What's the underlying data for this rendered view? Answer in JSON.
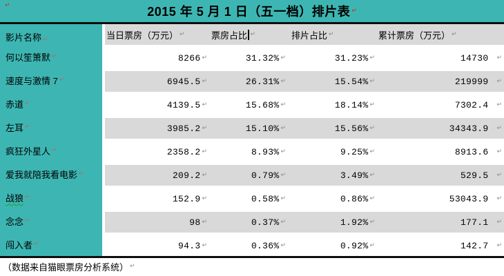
{
  "title": "2015 年 5 月 1 日（五一档）排片表",
  "marks": {
    "cell_end": "↵"
  },
  "table": {
    "name_header": "影片名称",
    "value_headers": [
      "当日票房（万元）",
      "票房占比",
      "排片占比",
      "累计票房（万元）"
    ],
    "rows": [
      {
        "name": "何以笙箫默",
        "daily": "8266",
        "share": "31.32%",
        "screening": "31.23%",
        "total": "14730"
      },
      {
        "name": "速度与激情 7",
        "daily": "6945.5",
        "share": "26.31%",
        "screening": "15.54%",
        "total": "219999"
      },
      {
        "name": "赤道",
        "daily": "4139.5",
        "share": "15.68%",
        "screening": "18.14%",
        "total": "7302.4"
      },
      {
        "name": "左耳",
        "daily": "3985.2",
        "share": "15.10%",
        "screening": "15.56%",
        "total": "34343.9"
      },
      {
        "name": "疯狂外星人",
        "daily": "2358.2",
        "share": "8.93%",
        "screening": "9.25%",
        "total": "8913.6"
      },
      {
        "name": "爱我就陪我看电影",
        "daily": "209.2",
        "share": "0.79%",
        "screening": "3.49%",
        "total": "529.5"
      },
      {
        "name": "战狼",
        "daily": "152.9",
        "share": "0.58%",
        "screening": "0.86%",
        "total": "53043.9",
        "grammar_underline": true
      },
      {
        "name": "念念",
        "daily": "98",
        "share": "0.37%",
        "screening": "1.92%",
        "total": "177.1"
      },
      {
        "name": "闯入者",
        "daily": "94.3",
        "share": "0.36%",
        "screening": "0.92%",
        "total": "142.7"
      }
    ]
  },
  "footer": "（数据来自猫眼票房分析系统）",
  "colors": {
    "teal": "#3DB6B3",
    "row_shade": "#D9D9D9",
    "mark_gray": "#8a8a8a",
    "mark_red": "#C03030",
    "mark_name": "#B06A6A",
    "grammar_underline": "#1f9e2c"
  }
}
